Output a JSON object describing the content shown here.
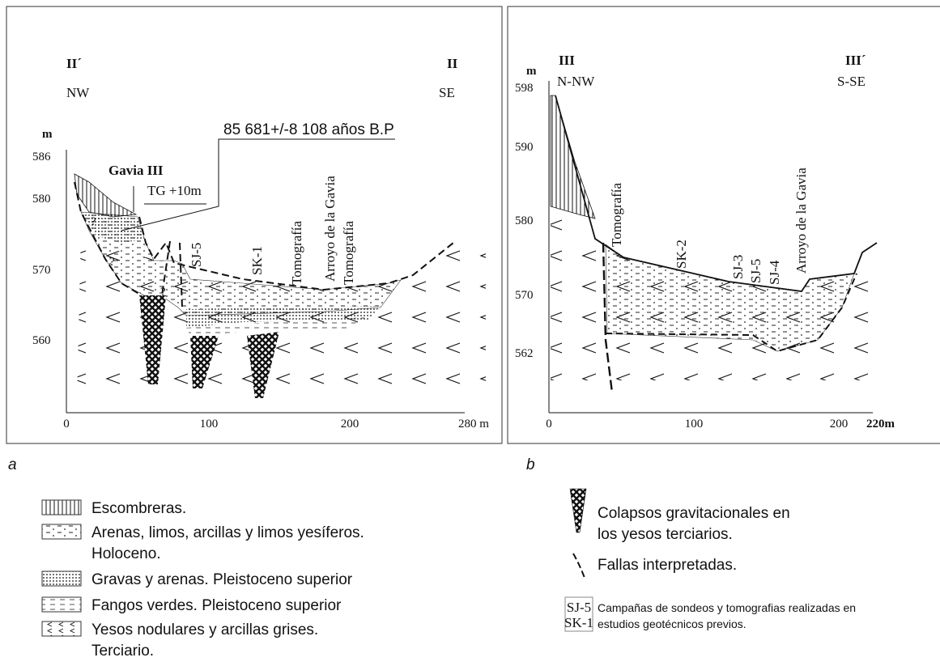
{
  "panel_a": {
    "caption": "a",
    "left_section": "II´",
    "left_direction": "NW",
    "right_section": "II",
    "right_direction": "SE",
    "y_unit": "m",
    "y_ticks": [
      "586",
      "580",
      "570",
      "560"
    ],
    "x_ticks": [
      "0",
      "100",
      "200",
      "280 m"
    ],
    "site": "Gavia III",
    "level": "TG +10m",
    "dating": "85 681+/-8 108 años B.P",
    "uncertain": "?",
    "labels": [
      "SJ-5",
      "SK-1",
      "Tomografía",
      "Arroyo de la Gavia",
      "Tomografía"
    ]
  },
  "panel_b": {
    "caption": "b",
    "left_section": "III",
    "left_direction": "N-NW",
    "right_section": "III´",
    "right_direction": "S-SE",
    "y_unit": "m",
    "y_ticks": [
      "598",
      "590",
      "580",
      "570",
      "562"
    ],
    "x_ticks": [
      "0",
      "100",
      "200",
      "220m"
    ],
    "labels": [
      "Tomografía",
      "SK-2",
      "SJ-3",
      "SJ-5",
      "SJ-4",
      "Arroyo de la Gavia"
    ]
  },
  "legend": {
    "items": [
      {
        "lines": [
          "Escombreras."
        ]
      },
      {
        "lines": [
          "Arenas, limos, arcillas y limos yesíferos.",
          "Holoceno."
        ]
      },
      {
        "lines": [
          "Gravas y arenas. Pleistoceno superior"
        ]
      },
      {
        "lines": [
          "Fangos verdes. Pleistoceno superior"
        ]
      },
      {
        "lines": [
          "Yesos nodulares y arcillas grises.",
          "Terciario."
        ]
      }
    ],
    "symbols": [
      {
        "lines": [
          "Colapsos gravitacionales en",
          "los yesos terciarios."
        ]
      },
      {
        "lines": [
          "Fallas interpretadas."
        ]
      }
    ],
    "sample": {
      "codes": [
        "SJ-5",
        "SK-1"
      ],
      "lines": [
        "Campañas de sondeos y tomografias realizadas en",
        "estudios geotécnicos previos."
      ]
    }
  }
}
